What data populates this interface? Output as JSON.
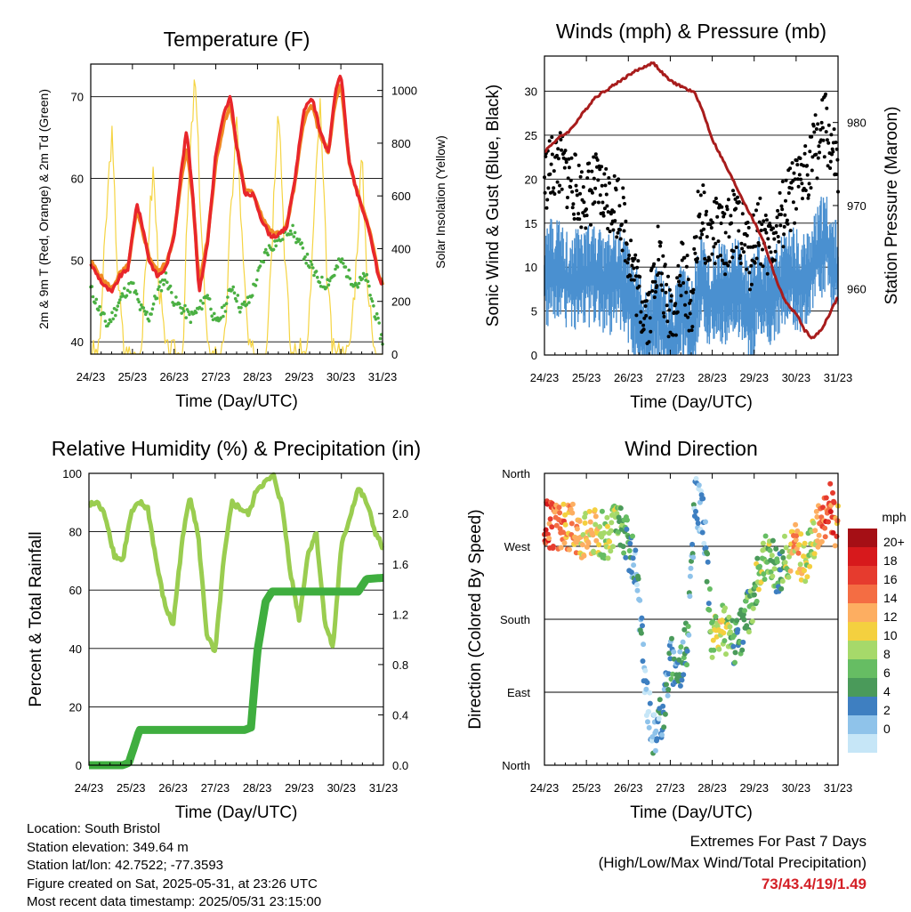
{
  "colors": {
    "temp2m": "#e8262b",
    "temp9m": "#f08a24",
    "dewpoint": "#4bb043",
    "solar": "#f5d442",
    "sonic": "#4a90d0",
    "gust": "#000000",
    "pressure": "#a81c1c",
    "rh": "#9acd50",
    "precip": "#3fae3f",
    "grid": "#000000",
    "extremes": "#d42027"
  },
  "x_ticks": [
    "24/23",
    "25/23",
    "26/23",
    "27/23",
    "28/23",
    "29/23",
    "30/23",
    "31/23"
  ],
  "panels": {
    "temperature": {
      "title": "Temperature (F)",
      "xlabel": "Time (Day/UTC)",
      "ylabel_left": "2m & 9m T (Red, Orange) & 2m Td (Green)",
      "ylabel_right": "Solar Insolation (Yellow)",
      "left_ticks": [
        "40",
        "50",
        "60",
        "70"
      ],
      "right_ticks": [
        "0",
        "200",
        "400",
        "600",
        "800",
        "1000"
      ]
    },
    "winds": {
      "title": "Winds (mph) & Pressure (mb)",
      "xlabel": "Time (Day/UTC)",
      "ylabel_left": "Sonic Wind & Gust (Blue, Black)",
      "ylabel_right": "Station Pressure (Maroon)",
      "left_ticks": [
        "0",
        "5",
        "10",
        "15",
        "20",
        "25",
        "30"
      ],
      "right_ticks": [
        "960",
        "970",
        "980"
      ]
    },
    "humidity": {
      "title": "Relative Humidity (%) & Precipitation (in)",
      "xlabel": "Time (Day/UTC)",
      "ylabel_left": "Percent & Total Rainfall",
      "left_ticks": [
        "0",
        "20",
        "40",
        "60",
        "80",
        "100"
      ],
      "right_ticks": [
        "0.0",
        "0.4",
        "0.8",
        "1.2",
        "1.6",
        "2.0"
      ]
    },
    "direction": {
      "title": "Wind Direction",
      "xlabel": "Time (Day/UTC)",
      "ylabel_left": "Direction (Colored By Speed)",
      "dir_ticks": [
        "North",
        "East",
        "South",
        "West",
        "North"
      ],
      "legend_title": "mph",
      "legend_labels": [
        "20+",
        "18",
        "16",
        "14",
        "12",
        "10",
        "8",
        "6",
        "4",
        "2",
        "0"
      ],
      "legend_colors": [
        "#a50f15",
        "#d7191c",
        "#e63b2e",
        "#f46d43",
        "#fdae61",
        "#f4d03f",
        "#a6d96a",
        "#66bd63",
        "#4a9a5a",
        "#3e7fc1",
        "#8fc3ea",
        "#c6e6f7"
      ]
    }
  },
  "chart_data": [
    {
      "type": "line",
      "title": "Temperature (F)",
      "xlabel": "Time (Day/UTC)",
      "ylabel": "2m & 9m T (Red, Orange) & 2m Td (Green)",
      "ylabel_right": "Solar Insolation (Yellow)",
      "x_range": [
        24,
        31
      ],
      "ylim": [
        38.5,
        74
      ],
      "ylim_right": [
        0,
        1100
      ],
      "grid": true,
      "series": [
        {
          "name": "2m T",
          "axis": "left",
          "x": [
            24.0,
            24.3,
            24.5,
            24.7,
            24.9,
            25.1,
            25.25,
            25.4,
            25.6,
            25.8,
            26.0,
            26.15,
            26.3,
            26.45,
            26.6,
            26.8,
            27.0,
            27.2,
            27.35,
            27.5,
            27.7,
            27.9,
            28.1,
            28.3,
            28.5,
            28.7,
            28.9,
            29.1,
            29.3,
            29.5,
            29.7,
            29.85,
            30.0,
            30.2,
            30.4,
            30.6,
            30.75,
            30.9,
            31.0
          ],
          "y": [
            49.5,
            47,
            46,
            48,
            49,
            57,
            54,
            50,
            48,
            49,
            53,
            60,
            66,
            58,
            46,
            52,
            63,
            68,
            70,
            64,
            58,
            58,
            55,
            53,
            53,
            54,
            60,
            68,
            70,
            66,
            63,
            70,
            73,
            62,
            58,
            55,
            52,
            48,
            47
          ]
        },
        {
          "name": "9m T",
          "axis": "left",
          "x": [
            24.0,
            24.3,
            24.5,
            24.7,
            24.9,
            25.1,
            25.25,
            25.4,
            25.6,
            25.8,
            26.0,
            26.15,
            26.3,
            26.45,
            26.6,
            26.8,
            27.0,
            27.2,
            27.35,
            27.5,
            27.7,
            27.9,
            28.1,
            28.3,
            28.5,
            28.7,
            28.9,
            29.1,
            29.3,
            29.5,
            29.7,
            29.85,
            30.0,
            30.2,
            30.4,
            30.6,
            30.75,
            30.9,
            31.0
          ],
          "y": [
            49.8,
            47.5,
            46.5,
            48.3,
            49.3,
            56,
            53.5,
            50.5,
            48.5,
            49.5,
            53,
            59,
            64,
            57.5,
            47,
            52.5,
            62,
            67,
            69,
            64,
            58.5,
            58.2,
            55.5,
            53.5,
            53.2,
            54.2,
            59.5,
            67,
            69,
            65.5,
            63,
            69,
            71.5,
            62,
            58.2,
            55.2,
            52.2,
            48.2,
            47.2
          ]
        },
        {
          "name": "2m Td",
          "axis": "left",
          "x": [
            24.0,
            24.2,
            24.4,
            24.6,
            24.8,
            25.0,
            25.2,
            25.4,
            25.6,
            25.8,
            26.0,
            26.2,
            26.4,
            26.6,
            26.8,
            27.0,
            27.2,
            27.4,
            27.6,
            27.8,
            28.0,
            28.2,
            28.4,
            28.6,
            28.8,
            29.0,
            29.2,
            29.4,
            29.6,
            29.8,
            30.0,
            30.2,
            30.4,
            30.6,
            30.8,
            31.0
          ],
          "y": [
            46.5,
            44,
            42,
            44,
            46,
            47,
            44,
            43,
            46,
            48,
            45,
            44,
            43,
            44,
            46,
            42,
            44,
            47,
            44,
            45,
            48,
            51,
            52,
            53,
            54,
            52,
            50,
            48,
            47,
            48,
            50,
            48,
            47,
            48,
            44,
            40
          ]
        },
        {
          "name": "Solar Insolation",
          "axis": "right",
          "x": [
            24.0,
            24.2,
            24.35,
            24.5,
            24.65,
            24.8,
            25.0,
            25.2,
            25.35,
            25.5,
            25.65,
            25.8,
            26.0,
            26.2,
            26.35,
            26.5,
            26.65,
            26.8,
            27.0,
            27.2,
            27.35,
            27.5,
            27.65,
            27.8,
            28.0,
            28.2,
            28.35,
            28.5,
            28.65,
            28.8,
            29.0,
            29.2,
            29.35,
            29.5,
            29.65,
            29.8,
            30.0,
            30.2,
            30.35,
            30.5,
            30.65,
            30.8,
            31.0
          ],
          "y": [
            0,
            0,
            450,
            850,
            300,
            0,
            0,
            0,
            380,
            700,
            250,
            0,
            0,
            0,
            650,
            1050,
            500,
            0,
            0,
            0,
            500,
            900,
            350,
            0,
            0,
            0,
            450,
            1000,
            400,
            0,
            0,
            0,
            500,
            950,
            350,
            0,
            0,
            0,
            300,
            750,
            250,
            0,
            0
          ]
        }
      ]
    },
    {
      "type": "scatter",
      "title": "Winds (mph) & Pressure (mb)",
      "xlabel": "Time (Day/UTC)",
      "ylabel": "Sonic Wind & Gust (Blue, Black)",
      "ylabel_right": "Station Pressure (Maroon)",
      "x_range": [
        24,
        31
      ],
      "ylim": [
        0,
        34
      ],
      "ylim_right": [
        952,
        988
      ],
      "grid": true,
      "series": [
        {
          "name": "Sonic Wind",
          "axis": "left",
          "x": [
            24.0,
            24.3,
            24.6,
            24.9,
            25.2,
            25.5,
            25.8,
            26.1,
            26.3,
            26.5,
            26.7,
            26.9,
            27.1,
            27.3,
            27.5,
            27.7,
            27.9,
            28.1,
            28.3,
            28.5,
            28.7,
            28.9,
            29.1,
            29.3,
            29.5,
            29.7,
            29.9,
            30.1,
            30.3,
            30.5,
            30.7,
            30.9,
            31.0
          ],
          "y": [
            10,
            11,
            9,
            10,
            10,
            9,
            10,
            6,
            4,
            3,
            6,
            3,
            3,
            6,
            3,
            10,
            7,
            8,
            8,
            9,
            8,
            5,
            9,
            7,
            8,
            9,
            10,
            9,
            10,
            12,
            14,
            11,
            10
          ]
        },
        {
          "name": "Gust",
          "axis": "left",
          "x": [
            24.0,
            24.3,
            24.6,
            24.9,
            25.2,
            25.5,
            25.8,
            26.1,
            26.3,
            26.5,
            26.7,
            26.9,
            27.1,
            27.3,
            27.5,
            27.7,
            27.9,
            28.1,
            28.3,
            28.5,
            28.7,
            28.9,
            29.1,
            29.3,
            29.5,
            29.7,
            29.9,
            30.1,
            30.3,
            30.5,
            30.7,
            30.9,
            31.0
          ],
          "y": [
            20,
            22,
            20,
            18,
            19,
            18,
            17,
            10,
            6,
            5,
            12,
            6,
            5,
            10,
            5,
            17,
            13,
            14,
            13,
            15,
            14,
            11,
            15,
            12,
            14,
            16,
            18,
            19,
            22,
            24,
            26,
            22,
            20
          ]
        },
        {
          "name": "Station Pressure",
          "axis": "right",
          "type": "line",
          "x": [
            24.0,
            24.3,
            24.6,
            24.9,
            25.2,
            25.5,
            25.8,
            26.1,
            26.3,
            26.5,
            26.6,
            26.8,
            27.0,
            27.2,
            27.4,
            27.6,
            27.8,
            28.0,
            28.2,
            28.4,
            28.6,
            28.8,
            29.0,
            29.2,
            29.4,
            29.6,
            29.8,
            30.0,
            30.2,
            30.4,
            30.6,
            30.8,
            31.0
          ],
          "y": [
            976.5,
            978,
            979,
            981,
            983,
            984,
            985,
            986,
            986.5,
            987,
            987.2,
            986,
            985,
            984.5,
            984,
            983.5,
            981,
            978,
            976,
            974,
            972,
            970,
            968,
            966,
            963,
            960,
            958,
            957,
            955,
            954,
            955,
            957,
            959
          ]
        }
      ]
    },
    {
      "type": "line",
      "title": "Relative Humidity (%) & Precipitation (in)",
      "xlabel": "Time (Day/UTC)",
      "ylabel": "Percent & Total Rainfall",
      "x_range": [
        24,
        31
      ],
      "ylim": [
        0,
        100
      ],
      "ylim_right": [
        0,
        2.32
      ],
      "grid": true,
      "series": [
        {
          "name": "Relative Humidity",
          "axis": "left",
          "x": [
            24.0,
            24.2,
            24.4,
            24.6,
            24.8,
            25.0,
            25.2,
            25.4,
            25.6,
            25.8,
            26.0,
            26.2,
            26.4,
            26.6,
            26.8,
            27.0,
            27.2,
            27.4,
            27.6,
            27.8,
            28.0,
            28.2,
            28.4,
            28.6,
            28.8,
            29.0,
            29.2,
            29.4,
            29.6,
            29.8,
            30.0,
            30.2,
            30.4,
            30.6,
            30.8,
            31.0
          ],
          "y": [
            89,
            90,
            85,
            72,
            70,
            86,
            90,
            88,
            70,
            55,
            48,
            75,
            93,
            78,
            45,
            38,
            70,
            90,
            88,
            86,
            95,
            97,
            99,
            88,
            65,
            50,
            72,
            80,
            50,
            40,
            75,
            85,
            95,
            90,
            80,
            74
          ]
        },
        {
          "name": "Total Precipitation",
          "axis": "right",
          "x": [
            24.0,
            24.8,
            24.95,
            25.2,
            25.6,
            26.0,
            26.5,
            27.0,
            27.5,
            27.7,
            27.85,
            28.0,
            28.2,
            28.35,
            28.6,
            29.0,
            29.5,
            30.0,
            30.4,
            30.6,
            31.0
          ],
          "y": [
            0,
            0,
            0.02,
            0.28,
            0.28,
            0.28,
            0.28,
            0.28,
            0.28,
            0.28,
            0.3,
            0.9,
            1.3,
            1.38,
            1.38,
            1.38,
            1.38,
            1.38,
            1.38,
            1.48,
            1.49
          ]
        }
      ]
    },
    {
      "type": "scatter",
      "title": "Wind Direction",
      "xlabel": "Time (Day/UTC)",
      "ylabel": "Direction (Colored By Speed)",
      "x_range": [
        24,
        31
      ],
      "ylim": [
        0,
        360
      ],
      "grid": true,
      "series": [
        {
          "name": "Direction",
          "x": [
            24.0,
            24.3,
            24.6,
            24.9,
            25.2,
            25.5,
            25.8,
            26.0,
            26.2,
            26.4,
            26.6,
            26.8,
            27.0,
            27.2,
            27.4,
            27.6,
            27.8,
            28.0,
            28.2,
            28.4,
            28.6,
            28.8,
            29.0,
            29.2,
            29.4,
            29.6,
            29.8,
            30.0,
            30.2,
            30.4,
            30.6,
            30.8,
            31.0
          ],
          "y": [
            300,
            290,
            295,
            285,
            290,
            280,
            300,
            270,
            240,
            100,
            40,
            60,
            130,
            120,
            150,
            330,
            300,
            150,
            170,
            160,
            150,
            180,
            210,
            260,
            250,
            240,
            260,
            270,
            250,
            280,
            300,
            320,
            290
          ],
          "speed": [
            18,
            16,
            14,
            12,
            12,
            10,
            8,
            6,
            3,
            2,
            3,
            4,
            5,
            4,
            6,
            2,
            2,
            10,
            12,
            8,
            6,
            6,
            8,
            10,
            8,
            6,
            10,
            14,
            12,
            10,
            16,
            18,
            14
          ]
        }
      ]
    }
  ],
  "footer": {
    "location": "Location: South Bristol",
    "elevation": "Station elevation: 349.64 m",
    "latlon": "Station lat/lon: 42.7522; -77.3593",
    "created": "Figure created on Sat, 2025-05-31, at 23:26 UTC",
    "recent": "Most recent data timestamp: 2025/05/31 23:15:00",
    "extremes_title": "Extremes For Past 7 Days",
    "extremes_subtitle": "(High/Low/Max Wind/Total Precipitation)",
    "extremes_values": "73/43.4/19/1.49"
  }
}
